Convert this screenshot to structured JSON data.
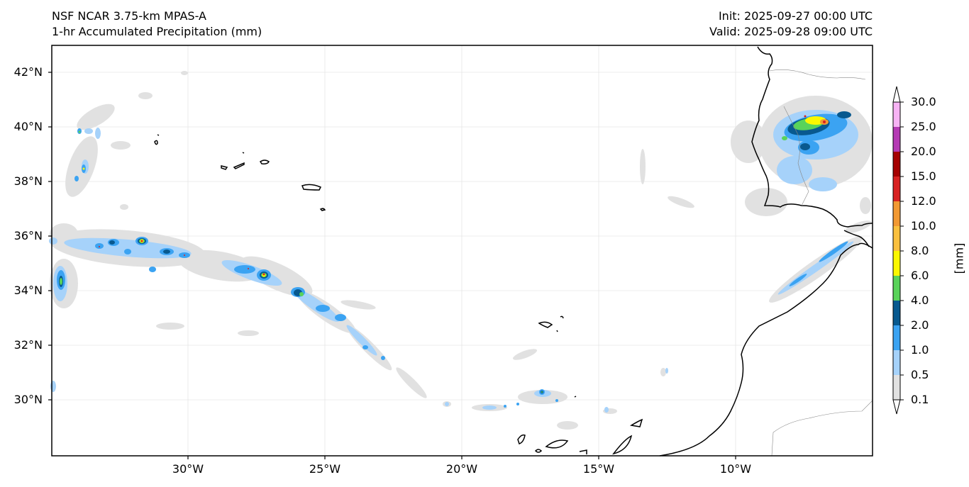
{
  "header": {
    "model": "NSF NCAR 3.75-km MPAS-A",
    "field": "1-hr Accumulated Precipitation (mm)",
    "init": "Init: 2025-09-27 00:00 UTC",
    "valid": "Valid: 2025-09-28 09:00 UTC"
  },
  "map": {
    "lon_range": [
      -35,
      -5
    ],
    "lat_range": [
      28,
      43
    ],
    "lat_ticks": [
      "42°N",
      "40°N",
      "38°N",
      "36°N",
      "34°N",
      "32°N",
      "30°N"
    ],
    "lon_ticks": [
      "30°W",
      "25°W",
      "20°W",
      "15°W",
      "10°W"
    ],
    "features": [
      "Azores",
      "Madeira",
      "Canary Islands",
      "Iberian Peninsula",
      "Morocco"
    ]
  },
  "colorbar": {
    "unit": "[mm]",
    "levels": [
      "0.1",
      "0.5",
      "1.0",
      "2.0",
      "4.0",
      "6.0",
      "8.0",
      "10.0",
      "12.0",
      "15.0",
      "20.0",
      "25.0",
      "30.0"
    ],
    "colors": [
      "#e1e1e1",
      "#a6d2fa",
      "#3ba3f2",
      "#08598f",
      "#59d35a",
      "#fbf800",
      "#fac03e",
      "#f29933",
      "#d82222",
      "#a50101",
      "#b53ab4",
      "#f7b3f4"
    ]
  }
}
